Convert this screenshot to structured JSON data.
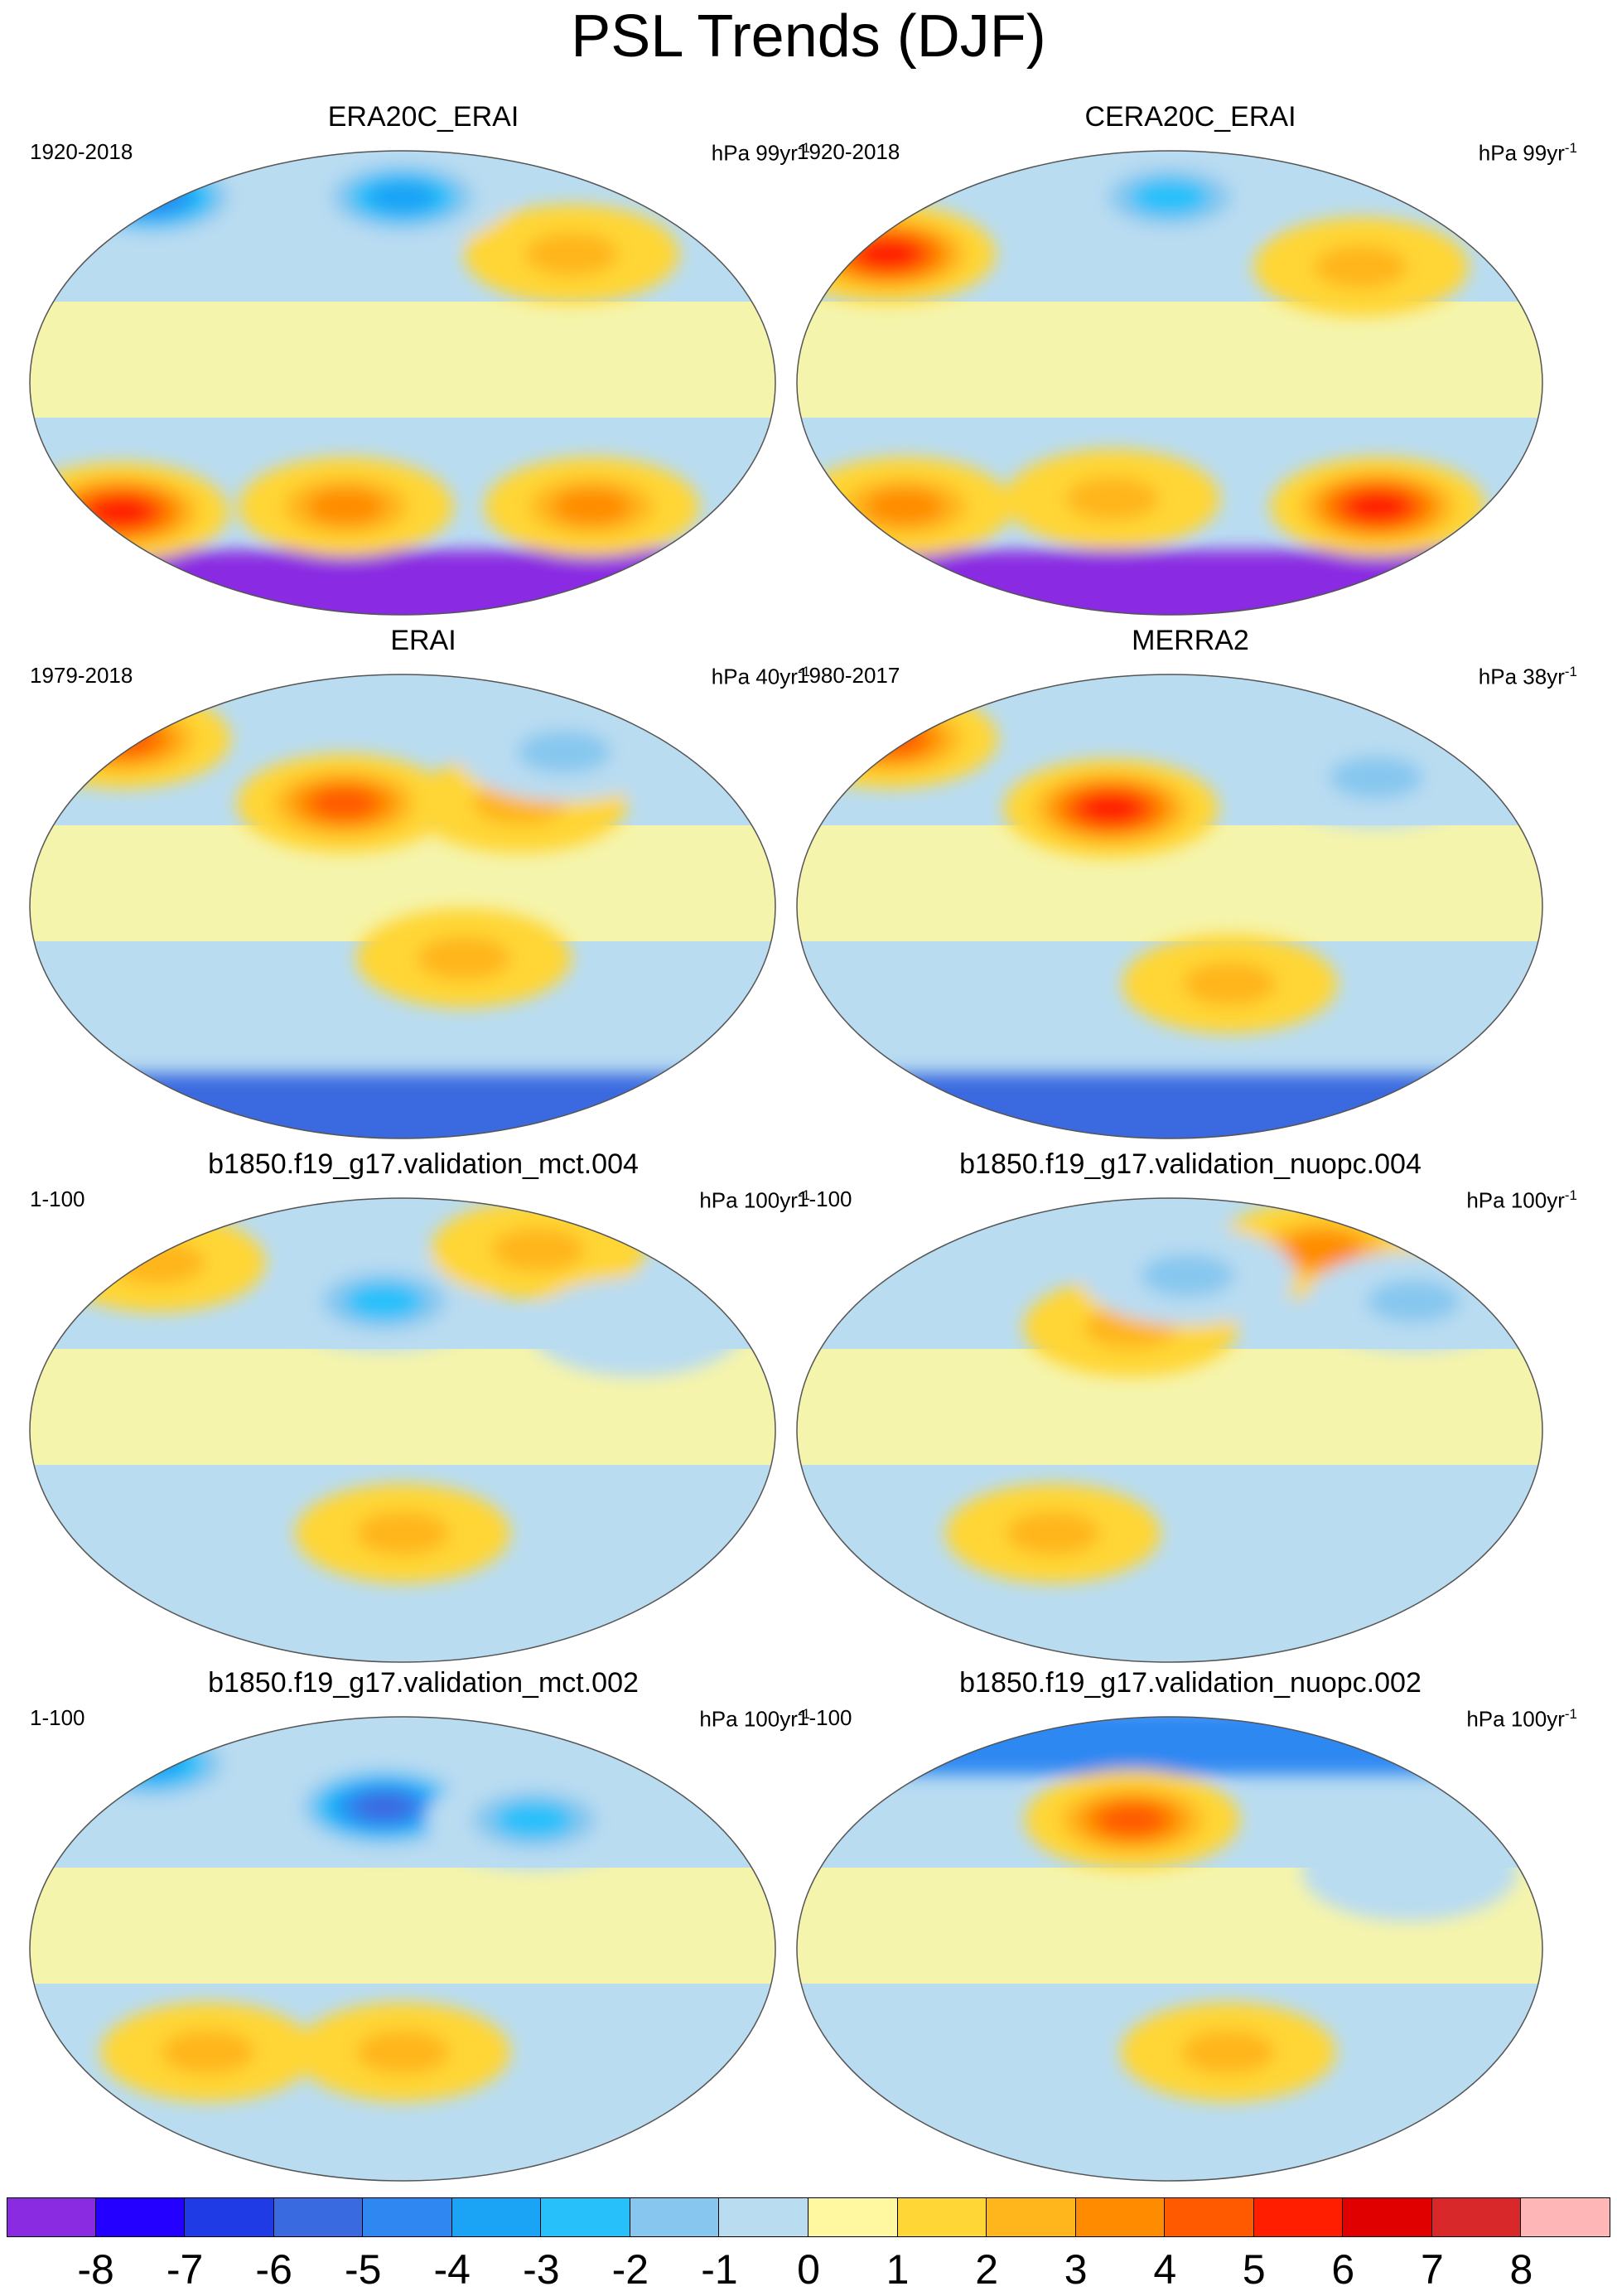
{
  "figure": {
    "title": "PSL Trends (DJF)"
  },
  "panels": [
    {
      "title": "ERA20C_ERAI",
      "period": "1920-2018",
      "units": "hPa 99yr",
      "units_exp": "-1",
      "features": [
        {
          "level": -9,
          "kind": "band-south"
        },
        {
          "level": 5,
          "kind": "blob",
          "lon": -150,
          "lat": -50
        },
        {
          "level": 3,
          "kind": "blob",
          "lon": -30,
          "lat": -48
        },
        {
          "level": 3,
          "kind": "blob",
          "lon": 100,
          "lat": -48
        },
        {
          "level": 2,
          "kind": "blob",
          "lon": 90,
          "lat": 50
        },
        {
          "level": -4,
          "kind": "blob",
          "lon": 0,
          "lat": 72
        },
        {
          "level": -5,
          "kind": "blob",
          "lon": -150,
          "lat": 72
        }
      ]
    },
    {
      "title": "CERA20C_ERAI",
      "period": "1920-2018",
      "units": "hPa 99yr",
      "units_exp": "-1",
      "features": [
        {
          "level": -9,
          "kind": "band-south"
        },
        {
          "level": 5,
          "kind": "blob",
          "lon": 110,
          "lat": -48
        },
        {
          "level": 3,
          "kind": "blob",
          "lon": -140,
          "lat": -48
        },
        {
          "level": 2,
          "kind": "blob",
          "lon": -30,
          "lat": -45
        },
        {
          "level": 2,
          "kind": "blob",
          "lon": 100,
          "lat": 45
        },
        {
          "level": 5,
          "kind": "blob",
          "lon": -150,
          "lat": 50
        },
        {
          "level": -3,
          "kind": "blob",
          "lon": 0,
          "lat": 72
        }
      ]
    },
    {
      "title": "ERAI",
      "period": "1979-2018",
      "units": "hPa 40yr",
      "units_exp": "-1",
      "features": [
        {
          "level": -6,
          "kind": "band-south"
        },
        {
          "level": 4,
          "kind": "blob",
          "lon": -160,
          "lat": 65
        },
        {
          "level": 4,
          "kind": "blob",
          "lon": -30,
          "lat": 40
        },
        {
          "level": 2,
          "kind": "blob",
          "lon": 30,
          "lat": -20
        },
        {
          "level": 2,
          "kind": "blob",
          "lon": 60,
          "lat": 40
        },
        {
          "level": -2,
          "kind": "blob",
          "lon": 90,
          "lat": 60
        }
      ]
    },
    {
      "title": "MERRA2",
      "period": "1980-2017",
      "units": "hPa 38yr",
      "units_exp": "-1",
      "features": [
        {
          "level": -6,
          "kind": "band-south"
        },
        {
          "level": 4,
          "kind": "blob",
          "lon": -160,
          "lat": 65
        },
        {
          "level": 5,
          "kind": "blob",
          "lon": -30,
          "lat": 38
        },
        {
          "level": 2,
          "kind": "blob",
          "lon": 30,
          "lat": -30
        },
        {
          "level": -2,
          "kind": "blob",
          "lon": 110,
          "lat": 50
        }
      ]
    },
    {
      "title": "b1850.f19_g17.validation_mct.004",
      "period": "1-100",
      "units": "hPa 100yr",
      "units_exp": "-1",
      "features": [
        {
          "level": -3,
          "kind": "blob",
          "lon": -10,
          "lat": 50
        },
        {
          "level": 2,
          "kind": "blob",
          "lon": -140,
          "lat": 65
        },
        {
          "level": 2,
          "kind": "blob",
          "lon": 80,
          "lat": 70
        },
        {
          "level": 2,
          "kind": "blob",
          "lon": 0,
          "lat": -40
        },
        {
          "level": -1,
          "kind": "blob",
          "lon": 120,
          "lat": 40
        }
      ]
    },
    {
      "title": "b1850.f19_g17.validation_nuopc.004",
      "period": "1-100",
      "units": "hPa 100yr",
      "units_exp": "-1",
      "features": [
        {
          "level": 3,
          "kind": "blob",
          "lon": 90,
          "lat": 70
        },
        {
          "level": 2,
          "kind": "blob",
          "lon": -20,
          "lat": 40
        },
        {
          "level": -2,
          "kind": "blob",
          "lon": 10,
          "lat": 60
        },
        {
          "level": -2,
          "kind": "blob",
          "lon": 130,
          "lat": 50
        },
        {
          "level": 2,
          "kind": "blob",
          "lon": -60,
          "lat": -40
        }
      ]
    },
    {
      "title": "b1850.f19_g17.validation_mct.002",
      "period": "1-100",
      "units": "hPa 100yr",
      "units_exp": "-1",
      "features": [
        {
          "level": -6,
          "kind": "blob",
          "lon": -10,
          "lat": 55
        },
        {
          "level": -3,
          "kind": "blob",
          "lon": 70,
          "lat": 50
        },
        {
          "level": -4,
          "kind": "blob",
          "lon": -150,
          "lat": 72
        },
        {
          "level": 2,
          "kind": "blob",
          "lon": 0,
          "lat": -40
        },
        {
          "level": 2,
          "kind": "blob",
          "lon": -100,
          "lat": -40
        }
      ]
    },
    {
      "title": "b1850.f19_g17.validation_nuopc.002",
      "period": "1-100",
      "units": "hPa 100yr",
      "units_exp": "-1",
      "features": [
        {
          "level": -5,
          "kind": "band-north"
        },
        {
          "level": 4,
          "kind": "blob",
          "lon": -20,
          "lat": 50
        },
        {
          "level": 2,
          "kind": "blob",
          "lon": 30,
          "lat": -40
        },
        {
          "level": -1,
          "kind": "blob",
          "lon": 120,
          "lat": 30
        }
      ]
    }
  ],
  "colorbar": {
    "labels": [
      "-8",
      "-7",
      "-6",
      "-5",
      "-4",
      "-3",
      "-2",
      "-1",
      "0",
      "1",
      "2",
      "3",
      "4",
      "5",
      "6",
      "7",
      "8"
    ],
    "colors": [
      "#8a2be2",
      "#2300ff",
      "#1e3be6",
      "#3a6ae0",
      "#2f88f2",
      "#1ba3f5",
      "#27c0fa",
      "#87c7ef",
      "#b9dcf1",
      "#fff8a0",
      "#ffd635",
      "#ffb51c",
      "#ff8c00",
      "#ff5a00",
      "#ff1e00",
      "#e00000",
      "#d8282a",
      "#ffb6b6"
    ]
  }
}
